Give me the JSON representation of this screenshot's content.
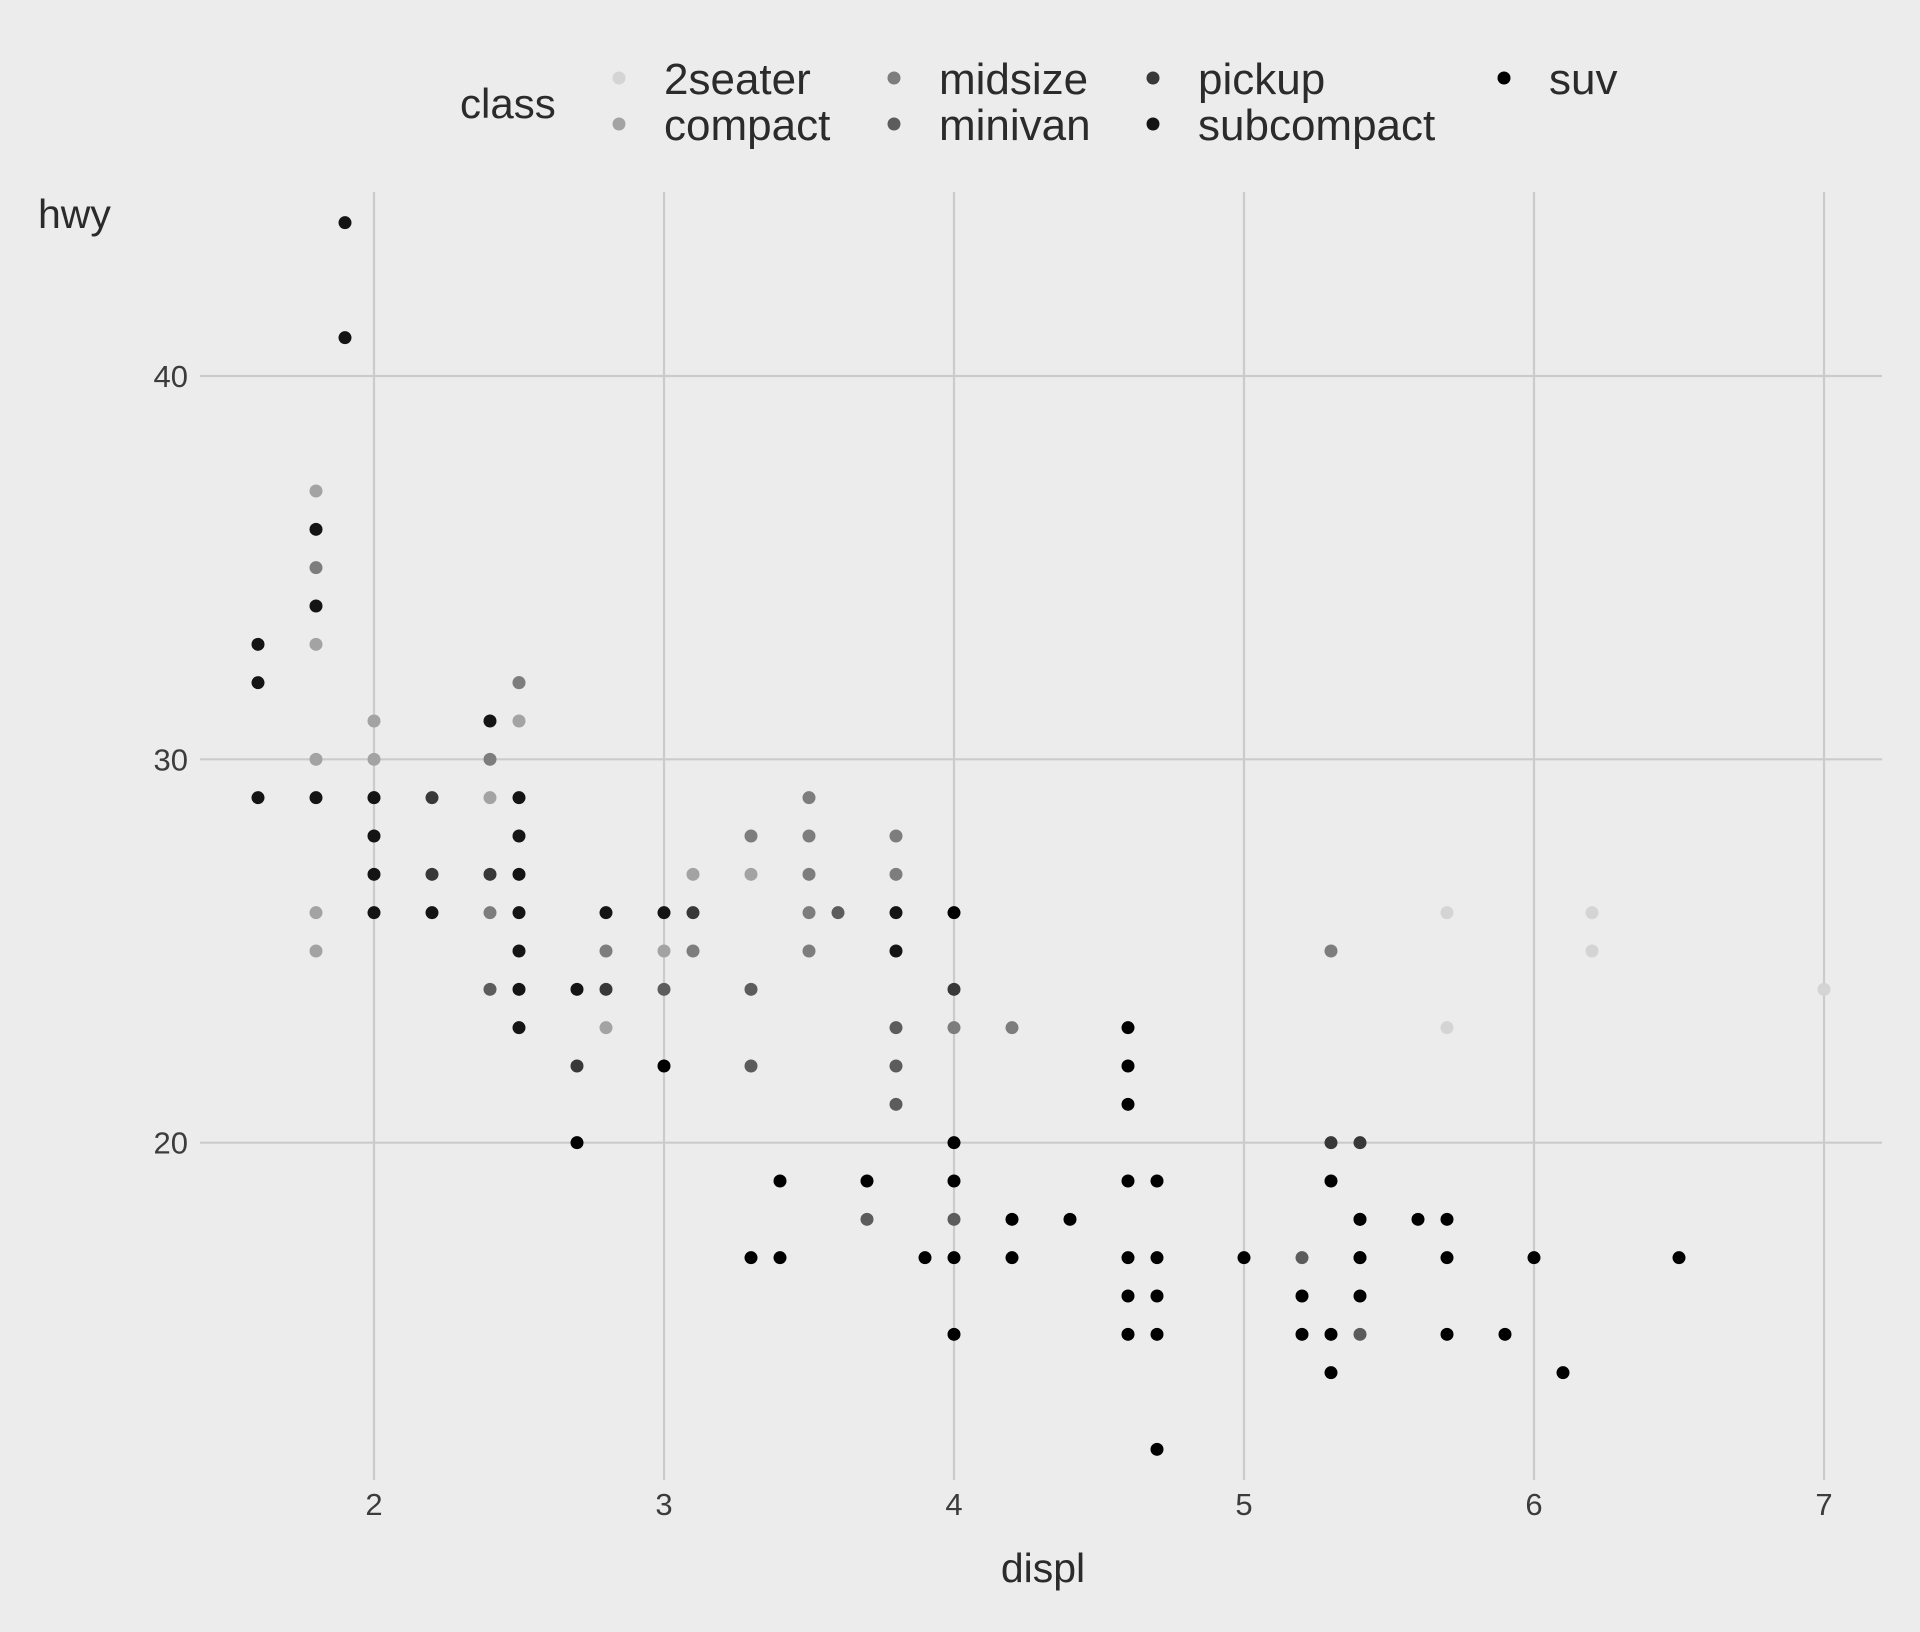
{
  "chart_data": {
    "type": "scatter",
    "title": "",
    "xlabel": "displ",
    "ylabel": "hwy",
    "xlim": [
      1.4,
      7.2
    ],
    "ylim": [
      11.2,
      44.8
    ],
    "x_ticks": [
      2,
      3,
      4,
      5,
      6,
      7
    ],
    "y_ticks": [
      20,
      30,
      40
    ],
    "grid": true,
    "legend": {
      "title": "class",
      "position": "top",
      "entries": [
        "2seater",
        "compact",
        "midsize",
        "minivan",
        "pickup",
        "subcompact",
        "suv"
      ]
    },
    "colors": {
      "background": "#ececec",
      "grid": "#cbcbcb",
      "2seater": "#d4d4d4",
      "compact": "#a3a3a3",
      "midsize": "#7d7d7d",
      "minivan": "#5c5c5c",
      "pickup": "#383838",
      "subcompact": "#141414",
      "suv": "#000000"
    },
    "series": [
      {
        "name": "2seater",
        "points": [
          [
            5.7,
            26
          ],
          [
            5.7,
            23
          ],
          [
            6.2,
            26
          ],
          [
            6.2,
            25
          ],
          [
            7.0,
            24
          ]
        ]
      },
      {
        "name": "compact",
        "points": [
          [
            1.8,
            37
          ],
          [
            1.8,
            33
          ],
          [
            1.8,
            30
          ],
          [
            1.8,
            26
          ],
          [
            1.8,
            25
          ],
          [
            2.0,
            31
          ],
          [
            2.0,
            30
          ],
          [
            2.4,
            29
          ],
          [
            2.5,
            31
          ],
          [
            2.5,
            32
          ],
          [
            2.8,
            23
          ],
          [
            3.1,
            27
          ],
          [
            3.3,
            27
          ],
          [
            3.0,
            25
          ]
        ]
      },
      {
        "name": "midsize",
        "points": [
          [
            1.8,
            35
          ],
          [
            2.0,
            29
          ],
          [
            2.4,
            30
          ],
          [
            2.4,
            26
          ],
          [
            2.5,
            32
          ],
          [
            2.8,
            25
          ],
          [
            3.1,
            25
          ],
          [
            3.3,
            28
          ],
          [
            3.5,
            29
          ],
          [
            3.5,
            28
          ],
          [
            3.5,
            27
          ],
          [
            3.5,
            26
          ],
          [
            3.5,
            25
          ],
          [
            3.8,
            28
          ],
          [
            3.8,
            27
          ],
          [
            4.0,
            23
          ],
          [
            4.2,
            23
          ],
          [
            5.3,
            25
          ]
        ]
      },
      {
        "name": "minivan",
        "points": [
          [
            2.4,
            24
          ],
          [
            3.0,
            24
          ],
          [
            3.3,
            24
          ],
          [
            3.3,
            22
          ],
          [
            3.8,
            23
          ],
          [
            3.8,
            22
          ],
          [
            3.8,
            21
          ],
          [
            4.0,
            18
          ],
          [
            3.6,
            26
          ],
          [
            3.7,
            18
          ],
          [
            5.2,
            17
          ],
          [
            5.4,
            15
          ]
        ]
      },
      {
        "name": "pickup",
        "points": [
          [
            2.2,
            29
          ],
          [
            2.2,
            27
          ],
          [
            2.4,
            27
          ],
          [
            2.7,
            22
          ],
          [
            2.8,
            24
          ],
          [
            3.1,
            26
          ],
          [
            4.0,
            24
          ],
          [
            5.3,
            20
          ],
          [
            5.4,
            20
          ],
          [
            5.4,
            18
          ],
          [
            5.4,
            17
          ]
        ]
      },
      {
        "name": "subcompact",
        "points": [
          [
            1.6,
            33
          ],
          [
            1.6,
            32
          ],
          [
            1.6,
            29
          ],
          [
            1.8,
            36
          ],
          [
            1.8,
            34
          ],
          [
            1.8,
            29
          ],
          [
            1.9,
            44
          ],
          [
            1.9,
            41
          ],
          [
            2.0,
            29
          ],
          [
            2.0,
            28
          ],
          [
            2.0,
            27
          ],
          [
            2.0,
            26
          ],
          [
            2.2,
            26
          ],
          [
            2.4,
            31
          ],
          [
            2.5,
            29
          ],
          [
            2.5,
            28
          ],
          [
            2.5,
            27
          ],
          [
            2.5,
            26
          ],
          [
            2.5,
            25
          ],
          [
            2.5,
            24
          ],
          [
            2.5,
            23
          ],
          [
            2.7,
            24
          ],
          [
            2.8,
            26
          ],
          [
            3.0,
            26
          ],
          [
            3.8,
            26
          ],
          [
            3.8,
            25
          ]
        ]
      },
      {
        "name": "suv",
        "points": [
          [
            2.7,
            20
          ],
          [
            3.0,
            22
          ],
          [
            3.3,
            17
          ],
          [
            3.4,
            19
          ],
          [
            3.4,
            17
          ],
          [
            3.9,
            17
          ],
          [
            4.0,
            20
          ],
          [
            4.0,
            19
          ],
          [
            4.0,
            17
          ],
          [
            4.0,
            15
          ],
          [
            4.0,
            26
          ],
          [
            4.2,
            18
          ],
          [
            4.2,
            17
          ],
          [
            4.4,
            18
          ],
          [
            4.6,
            23
          ],
          [
            4.6,
            22
          ],
          [
            4.6,
            21
          ],
          [
            4.6,
            19
          ],
          [
            4.6,
            17
          ],
          [
            4.6,
            16
          ],
          [
            4.6,
            15
          ],
          [
            4.7,
            19
          ],
          [
            4.7,
            17
          ],
          [
            4.7,
            16
          ],
          [
            4.7,
            15
          ],
          [
            4.7,
            12
          ],
          [
            5.0,
            17
          ],
          [
            5.2,
            16
          ],
          [
            5.2,
            15
          ],
          [
            5.3,
            19
          ],
          [
            5.3,
            15
          ],
          [
            5.3,
            14
          ],
          [
            5.4,
            18
          ],
          [
            5.4,
            17
          ],
          [
            5.4,
            16
          ],
          [
            5.6,
            18
          ],
          [
            5.7,
            18
          ],
          [
            5.7,
            17
          ],
          [
            5.7,
            15
          ],
          [
            5.9,
            15
          ],
          [
            6.0,
            17
          ],
          [
            6.1,
            14
          ],
          [
            6.5,
            17
          ],
          [
            3.7,
            19
          ]
        ]
      }
    ]
  }
}
